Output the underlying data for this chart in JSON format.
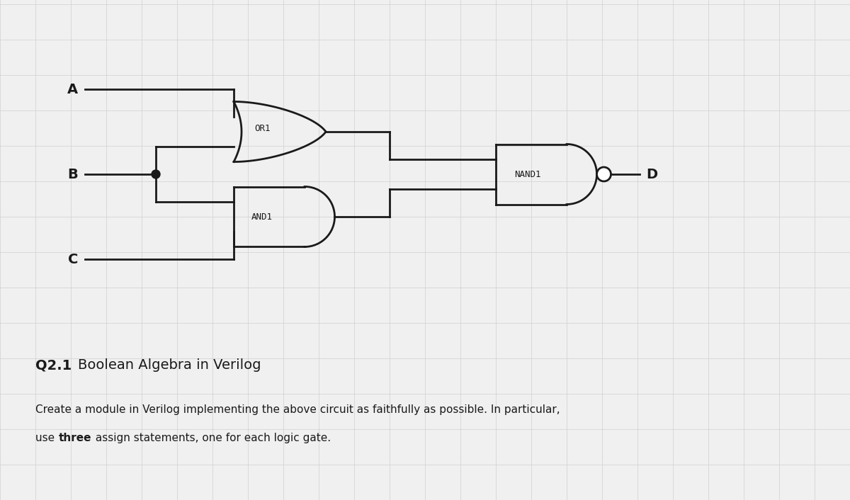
{
  "bg_color": "#f0f0f0",
  "grid_color": "#d0d0d0",
  "line_color": "#1a1a1a",
  "text_color": "#1a1a1a",
  "title": "Q2.1 Boolean Algebra in Verilog",
  "body_line1": "Create a module in Verilog implementing the above circuit as faithfully as possible. In particular,",
  "body_line2": "use {bold}three{/bold} assign statements, one for each logic gate.",
  "inputs": [
    "A",
    "B",
    "C"
  ],
  "gates": [
    "OR1",
    "AND1",
    "NAND1"
  ],
  "output": "D",
  "figsize": [
    12.0,
    7.06
  ],
  "dpi": 100
}
